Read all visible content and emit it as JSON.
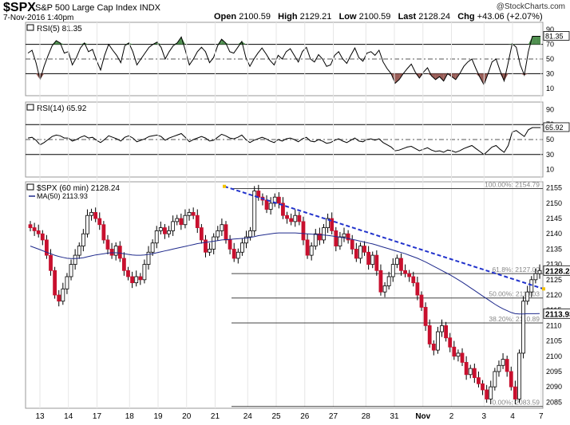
{
  "header": {
    "symbol": "$SPX",
    "name": "S&P 500 Large Cap Index",
    "exchange": "INDX",
    "copyright": "@StockCharts.com",
    "date": "7-Nov-2016 1:40pm",
    "open_label": "Open",
    "open": "2100.59",
    "high_label": "High",
    "high": "2129.21",
    "low_label": "Low",
    "low": "2100.59",
    "last_label": "Last",
    "last": "2128.24",
    "chg_label": "Chg",
    "chg": "+43.06 (+2.07%)"
  },
  "chart_data": [
    {
      "type": "line",
      "title": "RSI(5) 81.35",
      "ylim": [
        0,
        100
      ],
      "yticks": [
        10,
        30,
        50,
        70,
        90
      ],
      "levels": [
        30,
        70
      ],
      "last_label": "81.35",
      "series": [
        {
          "name": "RSI(5)",
          "values": [
            58,
            62,
            45,
            22,
            40,
            55,
            68,
            75,
            72,
            58,
            60,
            42,
            52,
            65,
            72,
            60,
            63,
            48,
            35,
            55,
            70,
            62,
            55,
            45,
            68,
            72,
            60,
            42,
            50,
            58,
            66,
            70,
            73,
            66,
            50,
            60,
            68,
            72,
            80,
            62,
            42,
            50,
            60,
            66,
            60,
            45,
            52,
            68,
            77,
            72,
            60,
            58,
            66,
            74,
            52,
            40,
            50,
            58,
            65,
            57,
            48,
            42,
            55,
            50,
            60,
            64,
            55,
            46,
            60,
            66,
            50,
            46,
            56,
            50,
            40,
            42,
            55,
            60,
            50,
            44,
            55,
            65,
            52,
            47,
            58,
            60,
            55,
            62,
            46,
            37,
            30,
            17,
            22,
            30,
            37,
            43,
            32,
            24,
            32,
            38,
            27,
            22,
            26,
            20,
            30,
            26,
            22,
            30,
            40,
            46,
            50,
            37,
            25,
            15,
            30,
            46,
            50,
            34,
            20,
            45,
            71,
            66,
            42,
            28,
            60,
            81,
            81,
            81
          ]
        }
      ]
    },
    {
      "type": "line",
      "title": "RSI(14) 65.92",
      "ylim": [
        0,
        100
      ],
      "yticks": [
        10,
        30,
        50,
        70,
        90
      ],
      "levels": [
        30,
        70
      ],
      "last_label": "65.92",
      "series": [
        {
          "name": "RSI(14)",
          "values": [
            52,
            53,
            49,
            43,
            46,
            50,
            54,
            56,
            55,
            52,
            52,
            48,
            50,
            53,
            55,
            52,
            53,
            49,
            46,
            50,
            55,
            53,
            51,
            48,
            53,
            55,
            52,
            47,
            49,
            51,
            54,
            55,
            56,
            54,
            49,
            52,
            54,
            56,
            58,
            53,
            47,
            50,
            52,
            54,
            52,
            48,
            49,
            53,
            57,
            55,
            52,
            51,
            53,
            56,
            50,
            46,
            49,
            51,
            53,
            51,
            48,
            46,
            50,
            48,
            51,
            52,
            50,
            47,
            51,
            53,
            48,
            47,
            50,
            48,
            45,
            46,
            49,
            51,
            48,
            46,
            49,
            52,
            48,
            47,
            50,
            51,
            49,
            51,
            46,
            43,
            40,
            35,
            36,
            38,
            40,
            41,
            38,
            35,
            37,
            39,
            36,
            34,
            35,
            33,
            36,
            35,
            33,
            35,
            38,
            40,
            42,
            38,
            34,
            30,
            35,
            40,
            42,
            37,
            33,
            42,
            60,
            62,
            58,
            54,
            63,
            66,
            66,
            66
          ]
        }
      ]
    },
    {
      "type": "candlestick",
      "title": "$SPX (60 min) 2128.24",
      "ylim": [
        2083,
        2157
      ],
      "yticks": [
        2085,
        2090,
        2095,
        2100,
        2105,
        2110,
        2115,
        2120,
        2125,
        2130,
        2135,
        2140,
        2145,
        2150,
        2155
      ],
      "x_labels": [
        "13",
        "14",
        "17",
        "18",
        "19",
        "20",
        "21",
        "24",
        "25",
        "26",
        "27",
        "28",
        "31",
        "Nov",
        "2",
        "3",
        "4",
        "7"
      ],
      "last_label": "2128.24",
      "ma_label": "2113.93",
      "series": [
        {
          "name": "$SPX (60 min)",
          "close": [
            2142,
            2141,
            2140,
            2138,
            2133,
            2128,
            2120,
            2118,
            2122,
            2126,
            2130,
            2133,
            2136,
            2140,
            2146,
            2147,
            2145,
            2143,
            2138,
            2135,
            2133,
            2136,
            2132,
            2128,
            2126,
            2124,
            2126,
            2125,
            2130,
            2134,
            2137,
            2141,
            2142,
            2140,
            2141,
            2144,
            2145,
            2143,
            2146,
            2147,
            2146,
            2142,
            2138,
            2134,
            2135,
            2139,
            2141,
            2143,
            2138,
            2135,
            2132,
            2134,
            2137,
            2139,
            2141,
            2154,
            2152,
            2151,
            2148,
            2150,
            2152,
            2150,
            2146,
            2145,
            2144,
            2146,
            2144,
            2138,
            2133,
            2136,
            2140,
            2138,
            2142,
            2145,
            2141,
            2136,
            2139,
            2140,
            2138,
            2135,
            2132,
            2136,
            2134,
            2130,
            2133,
            2128,
            2121,
            2123,
            2126,
            2130,
            2132,
            2128,
            2127,
            2126,
            2124,
            2120,
            2116,
            2110,
            2104,
            2102,
            2108,
            2110,
            2106,
            2103,
            2100,
            2101,
            2098,
            2094,
            2096,
            2093,
            2091,
            2089,
            2086,
            2090,
            2095,
            2097,
            2099,
            2095,
            2090,
            2086,
            2101,
            2118,
            2121,
            2125,
            2127,
            2128
          ]
        },
        {
          "name": "MA(50)",
          "values": [
            2136,
            2135.5,
            2135,
            2134.5,
            2134,
            2133.5,
            2133,
            2132.6,
            2132.3,
            2132,
            2131.9,
            2131.9,
            2132,
            2132.2,
            2132.5,
            2132.8,
            2133.1,
            2133.3,
            2133.5,
            2133.7,
            2133.8,
            2133.8,
            2133.7,
            2133.5,
            2133.3,
            2133.1,
            2133,
            2133,
            2133.1,
            2133.3,
            2133.5,
            2133.8,
            2134.1,
            2134.4,
            2134.7,
            2135,
            2135.3,
            2135.6,
            2135.9,
            2136.2,
            2136.5,
            2136.8,
            2137,
            2137.2,
            2137.4,
            2137.6,
            2137.8,
            2138,
            2138.1,
            2138.2,
            2138.3,
            2138.4,
            2138.5,
            2138.6,
            2138.8,
            2139.1,
            2139.4,
            2139.6,
            2139.8,
            2140,
            2140.2,
            2140.3,
            2140.3,
            2140.3,
            2140.3,
            2140.3,
            2140.2,
            2140.1,
            2140,
            2139.9,
            2139.8,
            2139.7,
            2139.6,
            2139.5,
            2139.3,
            2139.1,
            2138.9,
            2138.7,
            2138.5,
            2138.2,
            2137.9,
            2137.6,
            2137.3,
            2137,
            2136.7,
            2136.3,
            2135.9,
            2135.5,
            2135.1,
            2134.7,
            2134.3,
            2133.9,
            2133.5,
            2133,
            2132.5,
            2132,
            2131.4,
            2130.8,
            2130.1,
            2129.4,
            2128.7,
            2128,
            2127.3,
            2126.6,
            2125.8,
            2125,
            2124.2,
            2123.3,
            2122.4,
            2121.5,
            2120.6,
            2119.7,
            2118.8,
            2117.9,
            2117,
            2116.2,
            2115.5,
            2114.9,
            2114.3,
            2113.9,
            2113.8,
            2113.8,
            2113.9,
            2113.9,
            2113.9,
            2113.93
          ]
        }
      ],
      "fib_levels": [
        {
          "label": "100.00%: 2154.79",
          "value": 2154.79
        },
        {
          "label": "61.8%: 2127.00",
          "value": 2127.0
        },
        {
          "label": "50.00%: 2119.03",
          "value": 2119.03
        },
        {
          "label": "38.20%: 2110.89",
          "value": 2110.89
        },
        {
          "label": "0.00%: 2083.59",
          "value": 2083.59
        }
      ],
      "trendline": {
        "from": 2155.5,
        "to": 2122
      }
    }
  ]
}
